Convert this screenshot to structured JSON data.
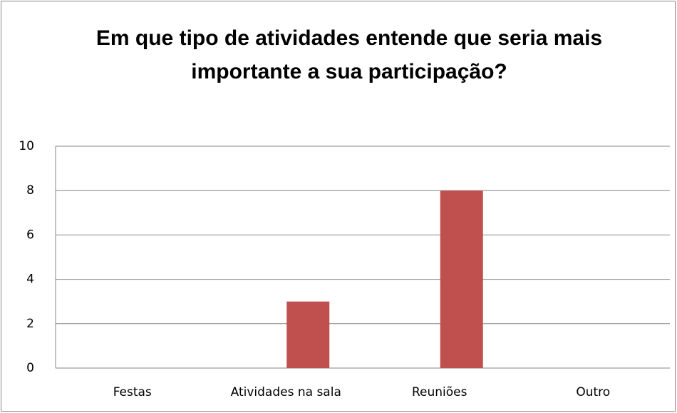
{
  "chart_data": {
    "type": "bar",
    "title": "Em que tipo de atividades entende que seria mais importante a sua participação?",
    "categories": [
      "Festas",
      "Atividades na sala",
      "Reuniões",
      "Outro"
    ],
    "values": [
      0,
      3,
      8,
      0
    ],
    "color": "#c0504d",
    "ylim": [
      0,
      10
    ],
    "yticks": [
      0,
      2,
      4,
      6,
      8,
      10
    ],
    "grid": true
  }
}
